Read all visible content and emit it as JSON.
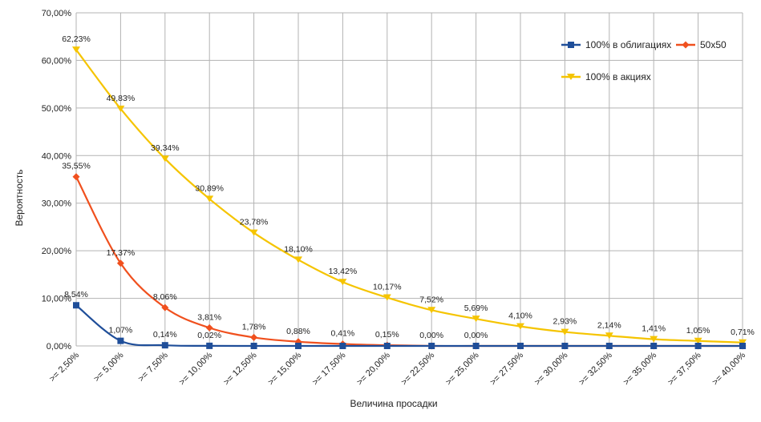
{
  "chart_data": {
    "type": "line",
    "smooth": true,
    "xlabel": "Величина просадки",
    "ylabel": "Вероятность",
    "ylim": [
      0,
      70
    ],
    "y_ticks": [
      "0,00%",
      "10,00%",
      "20,00%",
      "30,00%",
      "40,00%",
      "50,00%",
      "60,00%",
      "70,00%"
    ],
    "grid": true,
    "legend_position": "top-right",
    "categories": [
      ">= 2,50%",
      ">= 5,00%",
      ">= 7,50%",
      ">= 10,00%",
      ">= 12,50%",
      ">= 15,00%",
      ">= 17,50%",
      ">= 20,00%",
      ">= 22,50%",
      ">= 25,00%",
      ">= 27,50%",
      ">= 30,00%",
      ">= 32,50%",
      ">= 35,00%",
      ">= 37,50%",
      ">= 40,00%"
    ],
    "series": [
      {
        "name": "100% в облигациях",
        "color": "#1f4e99",
        "marker": "square",
        "values": [
          8.54,
          1.07,
          0.14,
          0.02,
          0,
          0,
          0,
          0,
          0,
          0,
          0,
          0,
          0,
          0,
          0,
          0
        ],
        "labels": [
          "8,54%",
          "1,07%",
          "0,14%",
          "0,02%",
          null,
          null,
          null,
          null,
          null,
          null,
          null,
          null,
          null,
          null,
          null,
          null
        ]
      },
      {
        "name": "50x50",
        "color": "#f0501e",
        "marker": "diamond",
        "values": [
          35.55,
          17.37,
          8.06,
          3.81,
          1.78,
          0.88,
          0.41,
          0.15,
          0,
          0,
          0,
          0,
          0,
          0,
          0,
          0
        ],
        "labels": [
          "35,55%",
          "17,37%",
          "8,06%",
          "3,81%",
          "1,78%",
          "0,88%",
          "0,41%",
          "0,15%",
          "0,00%",
          "0,00%",
          null,
          null,
          null,
          null,
          null,
          null
        ]
      },
      {
        "name": "100% в акциях",
        "color": "#f5c400",
        "marker": "triangle-down",
        "values": [
          62.23,
          49.83,
          39.34,
          30.89,
          23.78,
          18.1,
          13.42,
          10.17,
          7.52,
          5.69,
          4.1,
          2.93,
          2.14,
          1.41,
          1.05,
          0.71
        ],
        "labels": [
          "62,23%",
          "49,83%",
          "39,34%",
          "30,89%",
          "23,78%",
          "18,10%",
          "13,42%",
          "10,17%",
          "7,52%",
          "5,69%",
          "4,10%",
          "2,93%",
          "2,14%",
          "1,41%",
          "1,05%",
          "0,71%"
        ]
      }
    ]
  }
}
